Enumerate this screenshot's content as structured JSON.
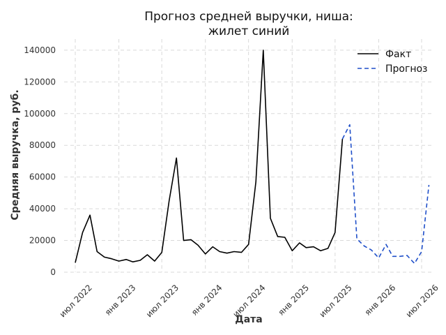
{
  "chart_data": {
    "type": "line",
    "title": [
      "Прогноз средней выручки, ниша:",
      "жилет синий"
    ],
    "xlabel": "Дата",
    "ylabel": "Средняя выручка, руб.",
    "ylim": [
      0,
      147000
    ],
    "xlim": [
      "2022-05-15",
      "2026-08-20"
    ],
    "yticks": [
      0,
      20000,
      40000,
      60000,
      80000,
      100000,
      120000,
      140000
    ],
    "ytick_labels": [
      "0",
      "20000",
      "40000",
      "60000",
      "80000",
      "100000",
      "120000",
      "140000"
    ],
    "xticks": [
      {
        "date": "2022-07-01",
        "label": "июл 2022"
      },
      {
        "date": "2023-01-01",
        "label": "янв 2023"
      },
      {
        "date": "2023-07-01",
        "label": "июл 2023"
      },
      {
        "date": "2024-01-01",
        "label": "янв 2024"
      },
      {
        "date": "2024-07-01",
        "label": "июл 2024"
      },
      {
        "date": "2025-01-01",
        "label": "янв 2025"
      },
      {
        "date": "2025-07-01",
        "label": "июл 2025"
      },
      {
        "date": "2026-01-01",
        "label": "янв 2026"
      },
      {
        "date": "2026-07-01",
        "label": "июл 2026"
      }
    ],
    "grid": true,
    "legend_position": "top-right",
    "series": [
      {
        "name": "Факт",
        "color": "#000000",
        "style": "solid",
        "x": [
          "2022-07-01",
          "2022-08-01",
          "2022-09-01",
          "2022-10-01",
          "2022-11-01",
          "2022-12-01",
          "2023-01-01",
          "2023-02-01",
          "2023-03-01",
          "2023-04-01",
          "2023-05-01",
          "2023-06-01",
          "2023-07-01",
          "2023-08-01",
          "2023-09-01",
          "2023-10-01",
          "2023-11-01",
          "2023-12-01",
          "2024-01-01",
          "2024-02-01",
          "2024-03-01",
          "2024-04-01",
          "2024-05-01",
          "2024-06-01",
          "2024-07-01",
          "2024-08-01",
          "2024-09-01",
          "2024-10-01",
          "2024-11-01",
          "2024-12-01",
          "2025-01-01",
          "2025-02-01",
          "2025-03-01",
          "2025-04-01",
          "2025-05-01",
          "2025-06-01",
          "2025-07-01",
          "2025-08-01"
        ],
        "values": [
          6000,
          25000,
          36000,
          13000,
          9500,
          8500,
          7000,
          8000,
          6500,
          7500,
          11000,
          7000,
          12500,
          45000,
          72000,
          20000,
          20500,
          17000,
          11500,
          16000,
          13000,
          12000,
          13000,
          12500,
          17500,
          57000,
          140000,
          34000,
          22500,
          22000,
          13500,
          18500,
          15500,
          16000,
          13500,
          15000,
          25000,
          84000
        ]
      },
      {
        "name": "Прогноз",
        "color": "#1f4fc9",
        "style": "dashed",
        "x": [
          "2025-08-01",
          "2025-09-01",
          "2025-10-01",
          "2025-11-01",
          "2025-12-01",
          "2026-01-01",
          "2026-02-01",
          "2026-03-01",
          "2026-04-01",
          "2026-05-01",
          "2026-06-01",
          "2026-07-01",
          "2026-08-01"
        ],
        "values": [
          84000,
          93000,
          21000,
          16500,
          14000,
          9000,
          17500,
          10000,
          10000,
          10500,
          5500,
          13000,
          55000
        ]
      }
    ]
  }
}
